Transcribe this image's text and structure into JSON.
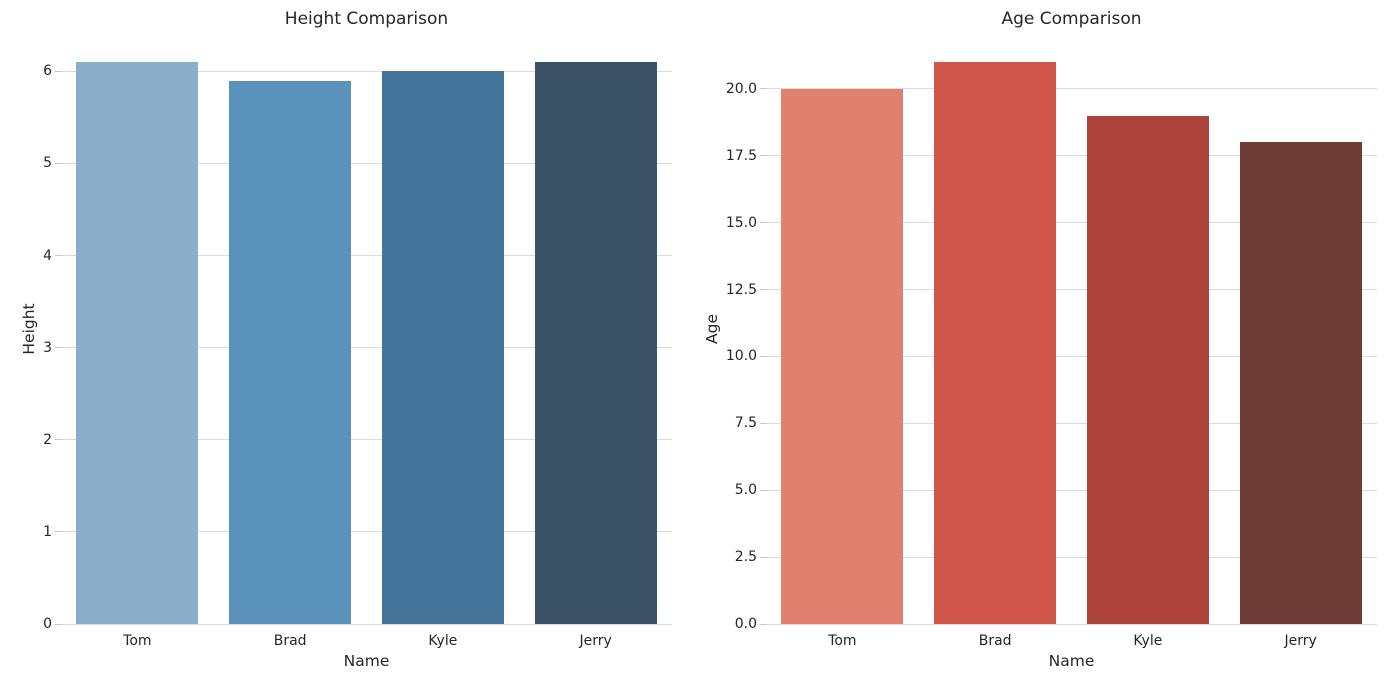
{
  "figure": {
    "background": "#ffffff"
  },
  "style": {
    "grid_color": "#dcdcdc",
    "tick_color": "#c3c3c3",
    "text_color": "#262626"
  },
  "chart_data": [
    {
      "type": "bar",
      "title": "Height Comparison",
      "xlabel": "Name",
      "ylabel": "Height",
      "categories": [
        "Tom",
        "Brad",
        "Kyle",
        "Jerry"
      ],
      "values": [
        6.1,
        5.9,
        6.0,
        6.1
      ],
      "colors": [
        "#8aaeca",
        "#5b92bb",
        "#45749a",
        "#3b5266"
      ],
      "ylim": [
        0,
        6.405
      ],
      "yticks": [
        0,
        1,
        2,
        3,
        4,
        5,
        6
      ],
      "ytick_labels": [
        "0",
        "1",
        "2",
        "3",
        "4",
        "5",
        "6"
      ],
      "grid": true,
      "legend": false,
      "bar_width_fraction": 0.8
    },
    {
      "type": "bar",
      "title": "Age Comparison",
      "xlabel": "Name",
      "ylabel": "Age",
      "categories": [
        "Tom",
        "Brad",
        "Kyle",
        "Jerry"
      ],
      "values": [
        20,
        21,
        19,
        18
      ],
      "colors": [
        "#e08170",
        "#d0564b",
        "#ae433c",
        "#6f3b37"
      ],
      "ylim": [
        0,
        22.05
      ],
      "yticks": [
        0,
        2.5,
        5,
        7.5,
        10,
        12.5,
        15,
        17.5,
        20
      ],
      "ytick_labels": [
        "0.0",
        "2.5",
        "5.0",
        "7.5",
        "10.0",
        "12.5",
        "15.0",
        "17.5",
        "20.0"
      ],
      "grid": true,
      "legend": false,
      "bar_width_fraction": 0.8
    }
  ]
}
